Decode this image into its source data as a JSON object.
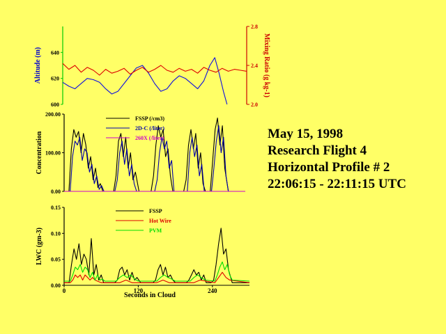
{
  "info": {
    "date": "May 15, 1998",
    "flight": "Research Flight 4",
    "profile": "Horizontal Profile # 2",
    "time_range": "22:06:15 - 22:11:15 UTC"
  },
  "chart_data": [
    {
      "type": "line",
      "title": "",
      "xlabel": "",
      "ylabel": "Altitude (m)",
      "y2label": "Mixing Ratio (g kg-1)",
      "xlim": [
        0,
        300
      ],
      "ylim": [
        600,
        660
      ],
      "y2lim": [
        2.0,
        2.8
      ],
      "yticks": [
        "600",
        "620",
        "640"
      ],
      "y2ticks": [
        "2.0",
        "2.4",
        "2.8"
      ],
      "colors": {
        "y_axis": "#00cc00",
        "y_label": "#0000cc",
        "y2_axis": "#cc0000",
        "y2_label": "#cc0000"
      },
      "series": [
        {
          "axis": "left",
          "color": "#1010e0",
          "x": [
            0,
            10,
            20,
            30,
            40,
            50,
            60,
            70,
            80,
            90,
            100,
            110,
            120,
            130,
            140,
            150,
            160,
            170,
            180,
            190,
            200,
            210,
            220,
            230,
            240,
            248,
            255,
            262,
            268
          ],
          "y": [
            617,
            614,
            612,
            616,
            620,
            619,
            617,
            612,
            608,
            610,
            616,
            622,
            628,
            630,
            624,
            616,
            610,
            612,
            618,
            622,
            620,
            616,
            612,
            618,
            630,
            636,
            624,
            610,
            600
          ]
        },
        {
          "axis": "right",
          "color": "#dd0000",
          "x": [
            0,
            10,
            20,
            30,
            40,
            50,
            60,
            70,
            80,
            90,
            100,
            110,
            120,
            130,
            140,
            150,
            160,
            170,
            180,
            190,
            200,
            210,
            220,
            230,
            240,
            250,
            260,
            270,
            280,
            290,
            300
          ],
          "y": [
            2.42,
            2.36,
            2.4,
            2.33,
            2.38,
            2.35,
            2.3,
            2.36,
            2.32,
            2.34,
            2.37,
            2.31,
            2.35,
            2.38,
            2.33,
            2.36,
            2.4,
            2.35,
            2.33,
            2.37,
            2.34,
            2.36,
            2.32,
            2.38,
            2.35,
            2.33,
            2.37,
            2.34,
            2.36,
            2.35,
            2.34
          ]
        }
      ]
    },
    {
      "type": "line",
      "title": "",
      "xlabel": "",
      "ylabel": "Concentration",
      "xlim": [
        0,
        300
      ],
      "ylim": [
        0,
        200
      ],
      "yticks": [
        "0.00",
        "100.00",
        "200.00"
      ],
      "legend": "top-center",
      "series": [
        {
          "name": "FSSP (/cm3)",
          "color": "#000000",
          "x": [
            0,
            8,
            12,
            16,
            20,
            24,
            28,
            32,
            36,
            40,
            44,
            48,
            52,
            56,
            60,
            64,
            70,
            78,
            82,
            86,
            90,
            94,
            98,
            102,
            106,
            110,
            114,
            118,
            124,
            132,
            140,
            144,
            148,
            152,
            156,
            160,
            164,
            168,
            172,
            176,
            180,
            186,
            190,
            194,
            198,
            202,
            206,
            210,
            214,
            218,
            222,
            226,
            230,
            234,
            238,
            242,
            246,
            250,
            254,
            258,
            262,
            266,
            272,
            300
          ],
          "y": [
            0,
            0,
            110,
            160,
            140,
            155,
            100,
            150,
            120,
            60,
            90,
            30,
            60,
            10,
            20,
            0,
            0,
            0,
            0,
            40,
            130,
            150,
            90,
            140,
            60,
            100,
            30,
            50,
            0,
            0,
            0,
            0,
            40,
            120,
            170,
            140,
            160,
            90,
            110,
            40,
            0,
            0,
            0,
            0,
            0,
            30,
            120,
            160,
            110,
            150,
            60,
            100,
            20,
            0,
            0,
            0,
            80,
            160,
            190,
            120,
            170,
            60,
            0,
            0
          ]
        },
        {
          "name": "2D-C (/liter)",
          "color": "#0000aa",
          "x": [
            0,
            10,
            14,
            18,
            22,
            26,
            30,
            34,
            38,
            42,
            46,
            50,
            54,
            58,
            62,
            66,
            84,
            88,
            92,
            96,
            100,
            104,
            108,
            112,
            116,
            120,
            150,
            154,
            158,
            162,
            166,
            170,
            174,
            178,
            182,
            204,
            208,
            212,
            216,
            220,
            224,
            228,
            232,
            244,
            248,
            252,
            256,
            260,
            264,
            268,
            272,
            300
          ],
          "y": [
            0,
            0,
            90,
            130,
            120,
            140,
            80,
            110,
            100,
            50,
            70,
            20,
            40,
            5,
            15,
            0,
            0,
            30,
            100,
            130,
            70,
            110,
            40,
            70,
            20,
            0,
            0,
            30,
            100,
            140,
            110,
            130,
            60,
            80,
            0,
            0,
            100,
            140,
            90,
            120,
            40,
            70,
            0,
            0,
            60,
            130,
            170,
            100,
            140,
            40,
            0,
            0
          ]
        },
        {
          "name": "260X (/liter)",
          "color": "#cc00cc",
          "x": [
            0,
            300
          ],
          "y": [
            0,
            0
          ]
        }
      ]
    },
    {
      "type": "line",
      "title": "",
      "xlabel": "Seconds in Cloud",
      "ylabel": "LWC (gm-3)",
      "xlim": [
        0,
        300
      ],
      "ylim": [
        0,
        0.15
      ],
      "xticks": [
        "0",
        "120",
        "240"
      ],
      "yticks": [
        "0.00",
        "0.05",
        "0.10",
        "0.15"
      ],
      "legend": "top-center",
      "series": [
        {
          "name": "FSSP",
          "color": "#000000",
          "x": [
            0,
            8,
            12,
            16,
            20,
            24,
            28,
            32,
            36,
            40,
            44,
            48,
            52,
            56,
            60,
            64,
            70,
            78,
            82,
            86,
            90,
            94,
            98,
            102,
            106,
            110,
            114,
            118,
            124,
            132,
            140,
            144,
            148,
            152,
            156,
            160,
            164,
            168,
            172,
            176,
            180,
            186,
            190,
            194,
            198,
            202,
            206,
            210,
            214,
            218,
            222,
            226,
            230,
            234,
            238,
            242,
            246,
            250,
            254,
            258,
            262,
            266,
            272,
            300
          ],
          "y": [
            0.005,
            0.005,
            0.04,
            0.07,
            0.05,
            0.08,
            0.04,
            0.06,
            0.05,
            0.02,
            0.09,
            0.02,
            0.04,
            0.01,
            0.02,
            0.005,
            0.005,
            0.005,
            0.005,
            0.01,
            0.03,
            0.035,
            0.02,
            0.03,
            0.01,
            0.025,
            0.01,
            0.015,
            0.005,
            0.005,
            0.005,
            0.005,
            0.01,
            0.03,
            0.04,
            0.02,
            0.035,
            0.015,
            0.02,
            0.01,
            0.005,
            0.005,
            0.005,
            0.005,
            0.005,
            0.01,
            0.02,
            0.03,
            0.02,
            0.025,
            0.01,
            0.02,
            0.005,
            0.005,
            0.005,
            0.01,
            0.04,
            0.08,
            0.11,
            0.06,
            0.07,
            0.03,
            0.005,
            0.005
          ]
        },
        {
          "name": "Hot Wire",
          "color": "#dd0000",
          "x": [
            0,
            10,
            14,
            18,
            22,
            26,
            30,
            34,
            38,
            42,
            46,
            50,
            60,
            90,
            100,
            110,
            150,
            160,
            170,
            210,
            220,
            244,
            250,
            256,
            262,
            268,
            300
          ],
          "y": [
            0.005,
            0.005,
            0.01,
            0.02,
            0.015,
            0.02,
            0.01,
            0.02,
            0.015,
            0.01,
            0.015,
            0.01,
            0.005,
            0.005,
            0.01,
            0.005,
            0.005,
            0.01,
            0.005,
            0.005,
            0.01,
            0.005,
            0.015,
            0.025,
            0.015,
            0.01,
            0.005
          ]
        },
        {
          "name": "PVM",
          "color": "#00dd00",
          "x": [
            0,
            10,
            14,
            18,
            22,
            26,
            30,
            34,
            38,
            42,
            46,
            50,
            54,
            58,
            62,
            66,
            84,
            90,
            96,
            102,
            108,
            114,
            120,
            150,
            156,
            162,
            168,
            174,
            180,
            204,
            210,
            216,
            222,
            228,
            244,
            248,
            252,
            256,
            260,
            264,
            268,
            272,
            300
          ],
          "y": [
            0.008,
            0.008,
            0.02,
            0.035,
            0.03,
            0.04,
            0.025,
            0.035,
            0.03,
            0.015,
            0.025,
            0.01,
            0.02,
            0.01,
            0.012,
            0.008,
            0.008,
            0.015,
            0.02,
            0.015,
            0.02,
            0.012,
            0.008,
            0.008,
            0.015,
            0.02,
            0.015,
            0.012,
            0.008,
            0.008,
            0.015,
            0.02,
            0.015,
            0.01,
            0.008,
            0.02,
            0.035,
            0.045,
            0.03,
            0.04,
            0.02,
            0.01,
            0.008
          ]
        }
      ]
    }
  ]
}
